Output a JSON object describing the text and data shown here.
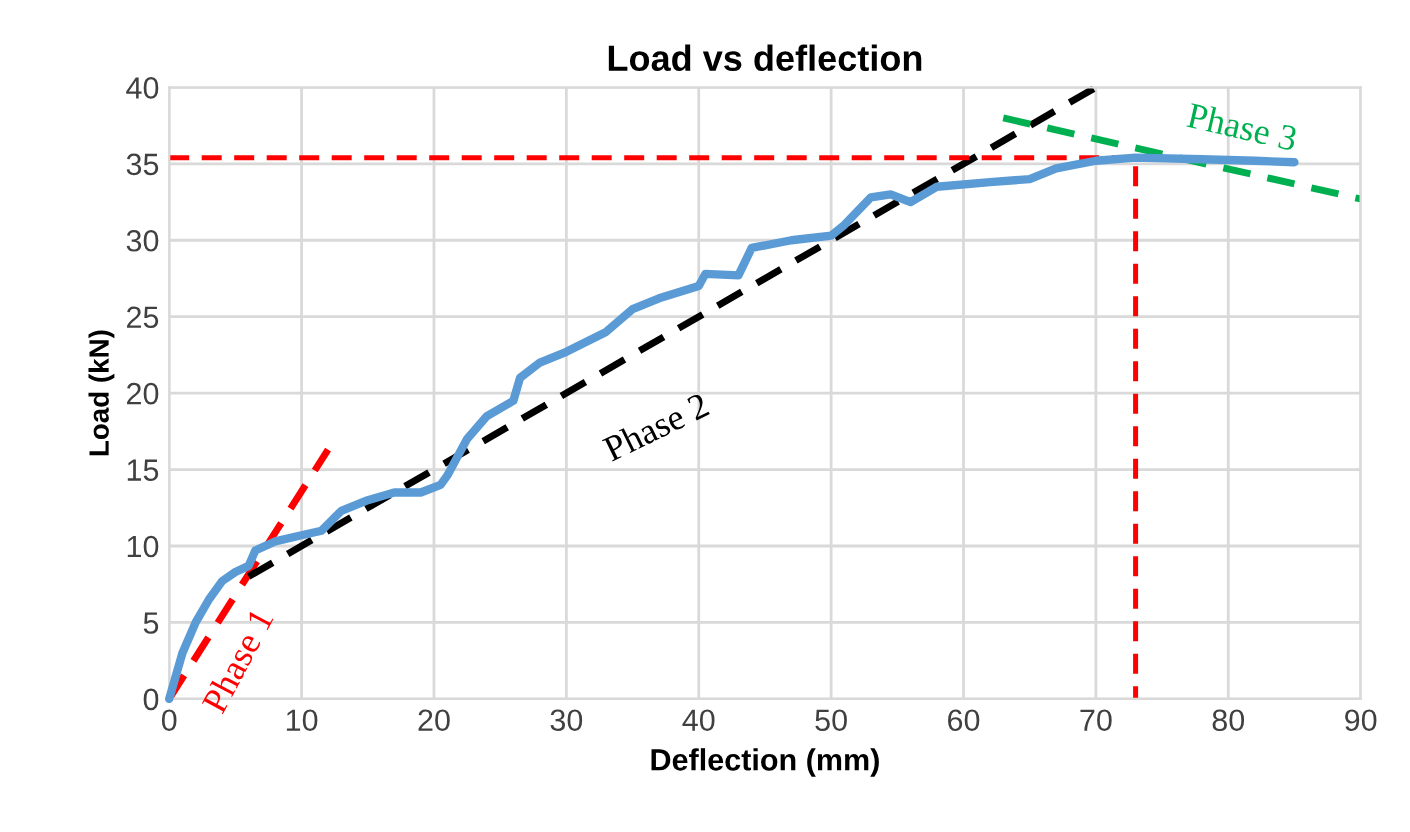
{
  "chart_data": {
    "type": "line",
    "title": "Load vs deflection",
    "xlabel": "Deflection (mm)",
    "ylabel": "Load (kN)",
    "xlim": [
      0,
      90
    ],
    "ylim": [
      0,
      40
    ],
    "xticks": [
      0,
      10,
      20,
      30,
      40,
      50,
      60,
      70,
      80,
      90
    ],
    "yticks": [
      0,
      5,
      10,
      15,
      20,
      25,
      30,
      35,
      40
    ],
    "grid": true,
    "legend": false,
    "series": [
      {
        "color": "#5b9bd5",
        "line_style": "solid",
        "x": [
          0,
          1,
          2,
          3,
          4,
          5,
          6,
          6.5,
          8,
          10,
          11.5,
          13,
          15,
          17,
          19,
          20.5,
          21,
          22.5,
          24,
          26,
          26.5,
          28,
          30,
          33,
          35,
          37,
          40,
          40.5,
          43,
          44,
          47,
          50,
          51,
          53,
          54.5,
          56,
          58,
          62,
          65,
          67,
          70,
          73,
          78,
          82,
          85
        ],
        "values": [
          0,
          3,
          5,
          6.5,
          7.7,
          8.3,
          8.7,
          9.7,
          10.3,
          10.7,
          11,
          12.3,
          13,
          13.5,
          13.5,
          14,
          14.6,
          17,
          18.5,
          19.5,
          21,
          22,
          22.7,
          24,
          25.5,
          26.2,
          27,
          27.8,
          27.7,
          29.5,
          30,
          30.3,
          31,
          32.8,
          33,
          32.5,
          33.5,
          33.8,
          34,
          34.7,
          35.2,
          35.4,
          35.3,
          35.2,
          35.1
        ]
      },
      {
        "color": "#ff0000",
        "line_style": "dashed",
        "x": [
          0,
          12
        ],
        "values": [
          0,
          16.3
        ]
      },
      {
        "color": "#000000",
        "line_style": "dashed",
        "x": [
          6,
          70
        ],
        "values": [
          8,
          40
        ]
      },
      {
        "color": "#00b050",
        "line_style": "dashed",
        "x": [
          63,
          90
        ],
        "values": [
          38,
          32.7
        ]
      },
      {
        "color": "#ff0000",
        "line_style": "dashed",
        "x": [
          0,
          73,
          73
        ],
        "values": [
          35.4,
          35.4,
          0
        ]
      }
    ],
    "annotations": [
      "Phase 1",
      "Phase 2",
      "Phase 3"
    ]
  }
}
